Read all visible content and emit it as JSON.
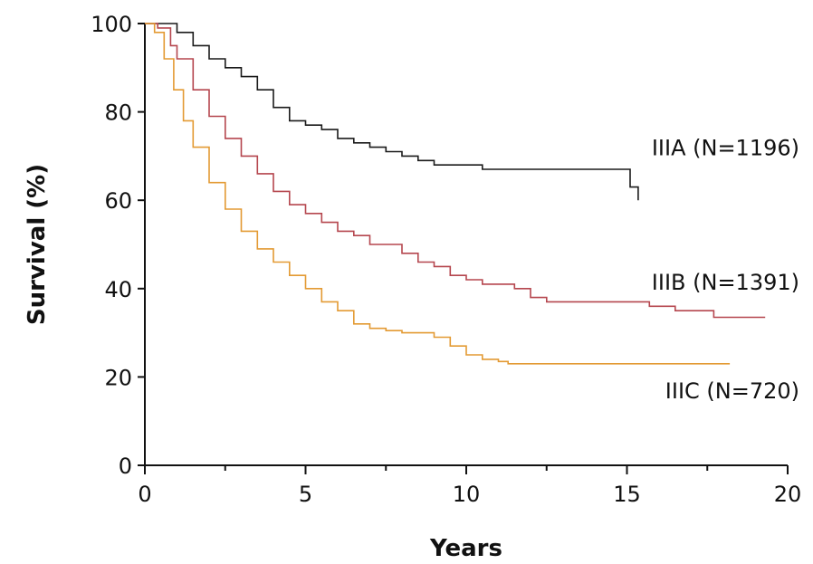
{
  "chart_data": {
    "type": "line",
    "xlabel": "Years",
    "ylabel": "Survival (%)",
    "xlim": [
      0,
      20
    ],
    "ylim": [
      0,
      100
    ],
    "xticks": [
      0,
      5,
      10,
      15,
      20
    ],
    "xticks_minor": [
      2.5,
      7.5,
      12.5,
      17.5
    ],
    "yticks": [
      0,
      20,
      40,
      60,
      80,
      100
    ],
    "grid": false,
    "series": [
      {
        "name": "IIIA (N=1196)",
        "color": "#1a1a1a",
        "points": [
          [
            0,
            100
          ],
          [
            0.6,
            100
          ],
          [
            1,
            98
          ],
          [
            1.5,
            95
          ],
          [
            2,
            92
          ],
          [
            2.5,
            90
          ],
          [
            3,
            88
          ],
          [
            3.5,
            85
          ],
          [
            4,
            81
          ],
          [
            4.5,
            78
          ],
          [
            5,
            77
          ],
          [
            5.5,
            76
          ],
          [
            6,
            74
          ],
          [
            6.5,
            73
          ],
          [
            7,
            72
          ],
          [
            7.5,
            71
          ],
          [
            8,
            70
          ],
          [
            8.5,
            69
          ],
          [
            9,
            68
          ],
          [
            9.5,
            68
          ],
          [
            10,
            68
          ],
          [
            10.5,
            67
          ],
          [
            11,
            67
          ],
          [
            12,
            67
          ],
          [
            13,
            67
          ],
          [
            14,
            67
          ],
          [
            15,
            67
          ],
          [
            15.1,
            67
          ],
          [
            15.1,
            63
          ],
          [
            15.35,
            63
          ],
          [
            15.35,
            60
          ]
        ]
      },
      {
        "name": "IIIB (N=1391)",
        "color": "#b5464e",
        "points": [
          [
            0,
            100
          ],
          [
            0.4,
            99
          ],
          [
            0.8,
            95
          ],
          [
            1,
            92
          ],
          [
            1.5,
            85
          ],
          [
            2,
            79
          ],
          [
            2.5,
            74
          ],
          [
            3,
            70
          ],
          [
            3.5,
            66
          ],
          [
            4,
            62
          ],
          [
            4.5,
            59
          ],
          [
            5,
            57
          ],
          [
            5.5,
            55
          ],
          [
            6,
            53
          ],
          [
            6.5,
            52
          ],
          [
            7,
            50
          ],
          [
            7.5,
            50
          ],
          [
            8,
            48
          ],
          [
            8.5,
            46
          ],
          [
            9,
            45
          ],
          [
            9.5,
            43
          ],
          [
            10,
            42
          ],
          [
            10.5,
            41
          ],
          [
            11,
            41
          ],
          [
            11.5,
            40
          ],
          [
            12,
            38
          ],
          [
            12.5,
            37
          ],
          [
            13,
            37
          ],
          [
            14,
            37
          ],
          [
            15,
            37
          ],
          [
            15.7,
            37
          ],
          [
            15.7,
            36
          ],
          [
            16.5,
            36
          ],
          [
            16.5,
            35
          ],
          [
            17.7,
            35
          ],
          [
            17.7,
            33.5
          ],
          [
            19.3,
            33.5
          ]
        ]
      },
      {
        "name": "IIIC (N=720)",
        "color": "#e39a33",
        "points": [
          [
            0,
            100
          ],
          [
            0.3,
            98
          ],
          [
            0.6,
            92
          ],
          [
            0.9,
            85
          ],
          [
            1.2,
            78
          ],
          [
            1.5,
            72
          ],
          [
            2,
            64
          ],
          [
            2.5,
            58
          ],
          [
            3,
            53
          ],
          [
            3.5,
            49
          ],
          [
            4,
            46
          ],
          [
            4.5,
            43
          ],
          [
            5,
            40
          ],
          [
            5.5,
            37
          ],
          [
            6,
            35
          ],
          [
            6.5,
            32
          ],
          [
            7,
            31
          ],
          [
            7.5,
            30.5
          ],
          [
            8,
            30
          ],
          [
            8.5,
            30
          ],
          [
            9,
            29
          ],
          [
            9.5,
            27
          ],
          [
            10,
            25
          ],
          [
            10.5,
            24
          ],
          [
            11,
            23.5
          ],
          [
            11.3,
            23
          ],
          [
            12,
            23
          ],
          [
            14,
            23
          ],
          [
            16,
            23
          ],
          [
            18.2,
            23
          ]
        ]
      }
    ]
  }
}
